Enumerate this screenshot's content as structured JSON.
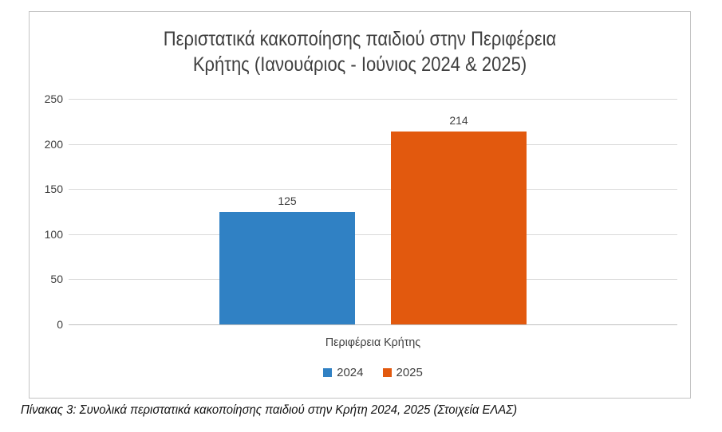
{
  "chart_data": {
    "type": "bar",
    "title": "Περιστατικά κακοποίησης παιδιού στην Περιφέρεια Κρήτης (Ιανουάριος - Ιούνιος 2024 & 2025)",
    "title_lines": [
      "Περιστατικά κακοποίησης παιδιού στην Περιφέρεια",
      "Κρήτης (Ιανουάριος - Ιούνιος 2024 & 2025)"
    ],
    "categories": [
      "Περιφέρεια Κρήτης"
    ],
    "series": [
      {
        "name": "2024",
        "values": [
          125
        ],
        "color": "#3081c4"
      },
      {
        "name": "2025",
        "values": [
          214
        ],
        "color": "#e2590e"
      }
    ],
    "xlabel": "",
    "ylabel": "",
    "ylim": [
      0,
      250
    ],
    "yticks": [
      0,
      50,
      100,
      150,
      200,
      250
    ],
    "grid": true,
    "grid_color": "#d9d9d9",
    "axis_line_color": "#bfbfbf",
    "legend_position": "bottom"
  },
  "caption": "Πίνακας 3: Συνολικά περιστατικά κακοποίησης παιδιού στην Κρήτη 2024, 2025 (Στοιχεία ΕΛΑΣ)"
}
